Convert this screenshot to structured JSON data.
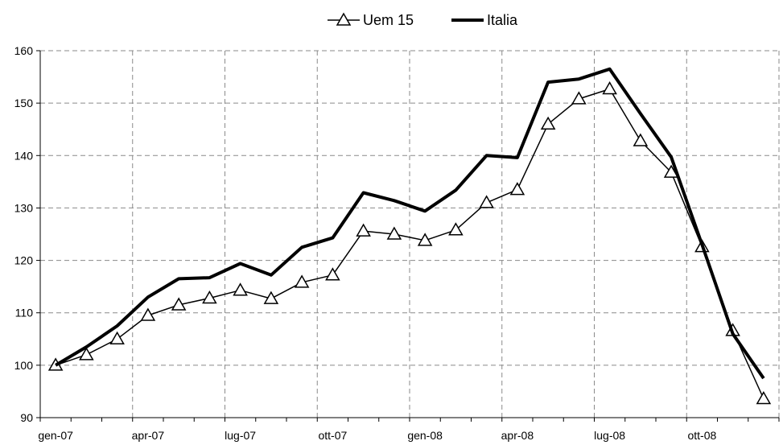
{
  "chart_data": {
    "type": "line",
    "title": "",
    "xlabel": "",
    "ylabel": "",
    "x": [
      "gen-07",
      "feb-07",
      "mar-07",
      "apr-07",
      "mag-07",
      "giu-07",
      "lug-07",
      "ago-07",
      "set-07",
      "ott-07",
      "nov-07",
      "dic-07",
      "gen-08",
      "feb-08",
      "mar-08",
      "apr-08",
      "mag-08",
      "giu-08",
      "lug-08",
      "ago-08",
      "set-08",
      "ott-08",
      "nov-08",
      "dic-08"
    ],
    "x_tick_labels": [
      "gen-07",
      "apr-07",
      "lug-07",
      "ott-07",
      "gen-08",
      "apr-08",
      "lug-08",
      "ott-08"
    ],
    "ylim": [
      90,
      160
    ],
    "y_ticks": [
      90,
      100,
      110,
      120,
      130,
      140,
      150,
      160
    ],
    "grid": true,
    "legend_position": "top-center",
    "series": [
      {
        "name": "Uem 15",
        "color": "#000000",
        "marker": "triangle-open",
        "values": [
          100.0,
          102.0,
          105.0,
          109.5,
          111.5,
          112.8,
          114.3,
          112.7,
          115.8,
          117.2,
          125.6,
          125.0,
          123.8,
          125.8,
          131.0,
          133.5,
          146.0,
          150.8,
          152.7,
          142.8,
          136.8,
          122.6,
          106.6,
          93.6
        ]
      },
      {
        "name": "Italia",
        "color": "#000000",
        "marker": "none",
        "values": [
          100.0,
          103.5,
          107.5,
          113.0,
          116.5,
          116.7,
          119.4,
          117.2,
          122.5,
          124.3,
          132.9,
          131.4,
          129.4,
          133.4,
          140.0,
          139.6,
          154.0,
          154.6,
          156.5,
          148.0,
          139.7,
          123.0,
          106.0,
          97.5
        ]
      }
    ]
  }
}
